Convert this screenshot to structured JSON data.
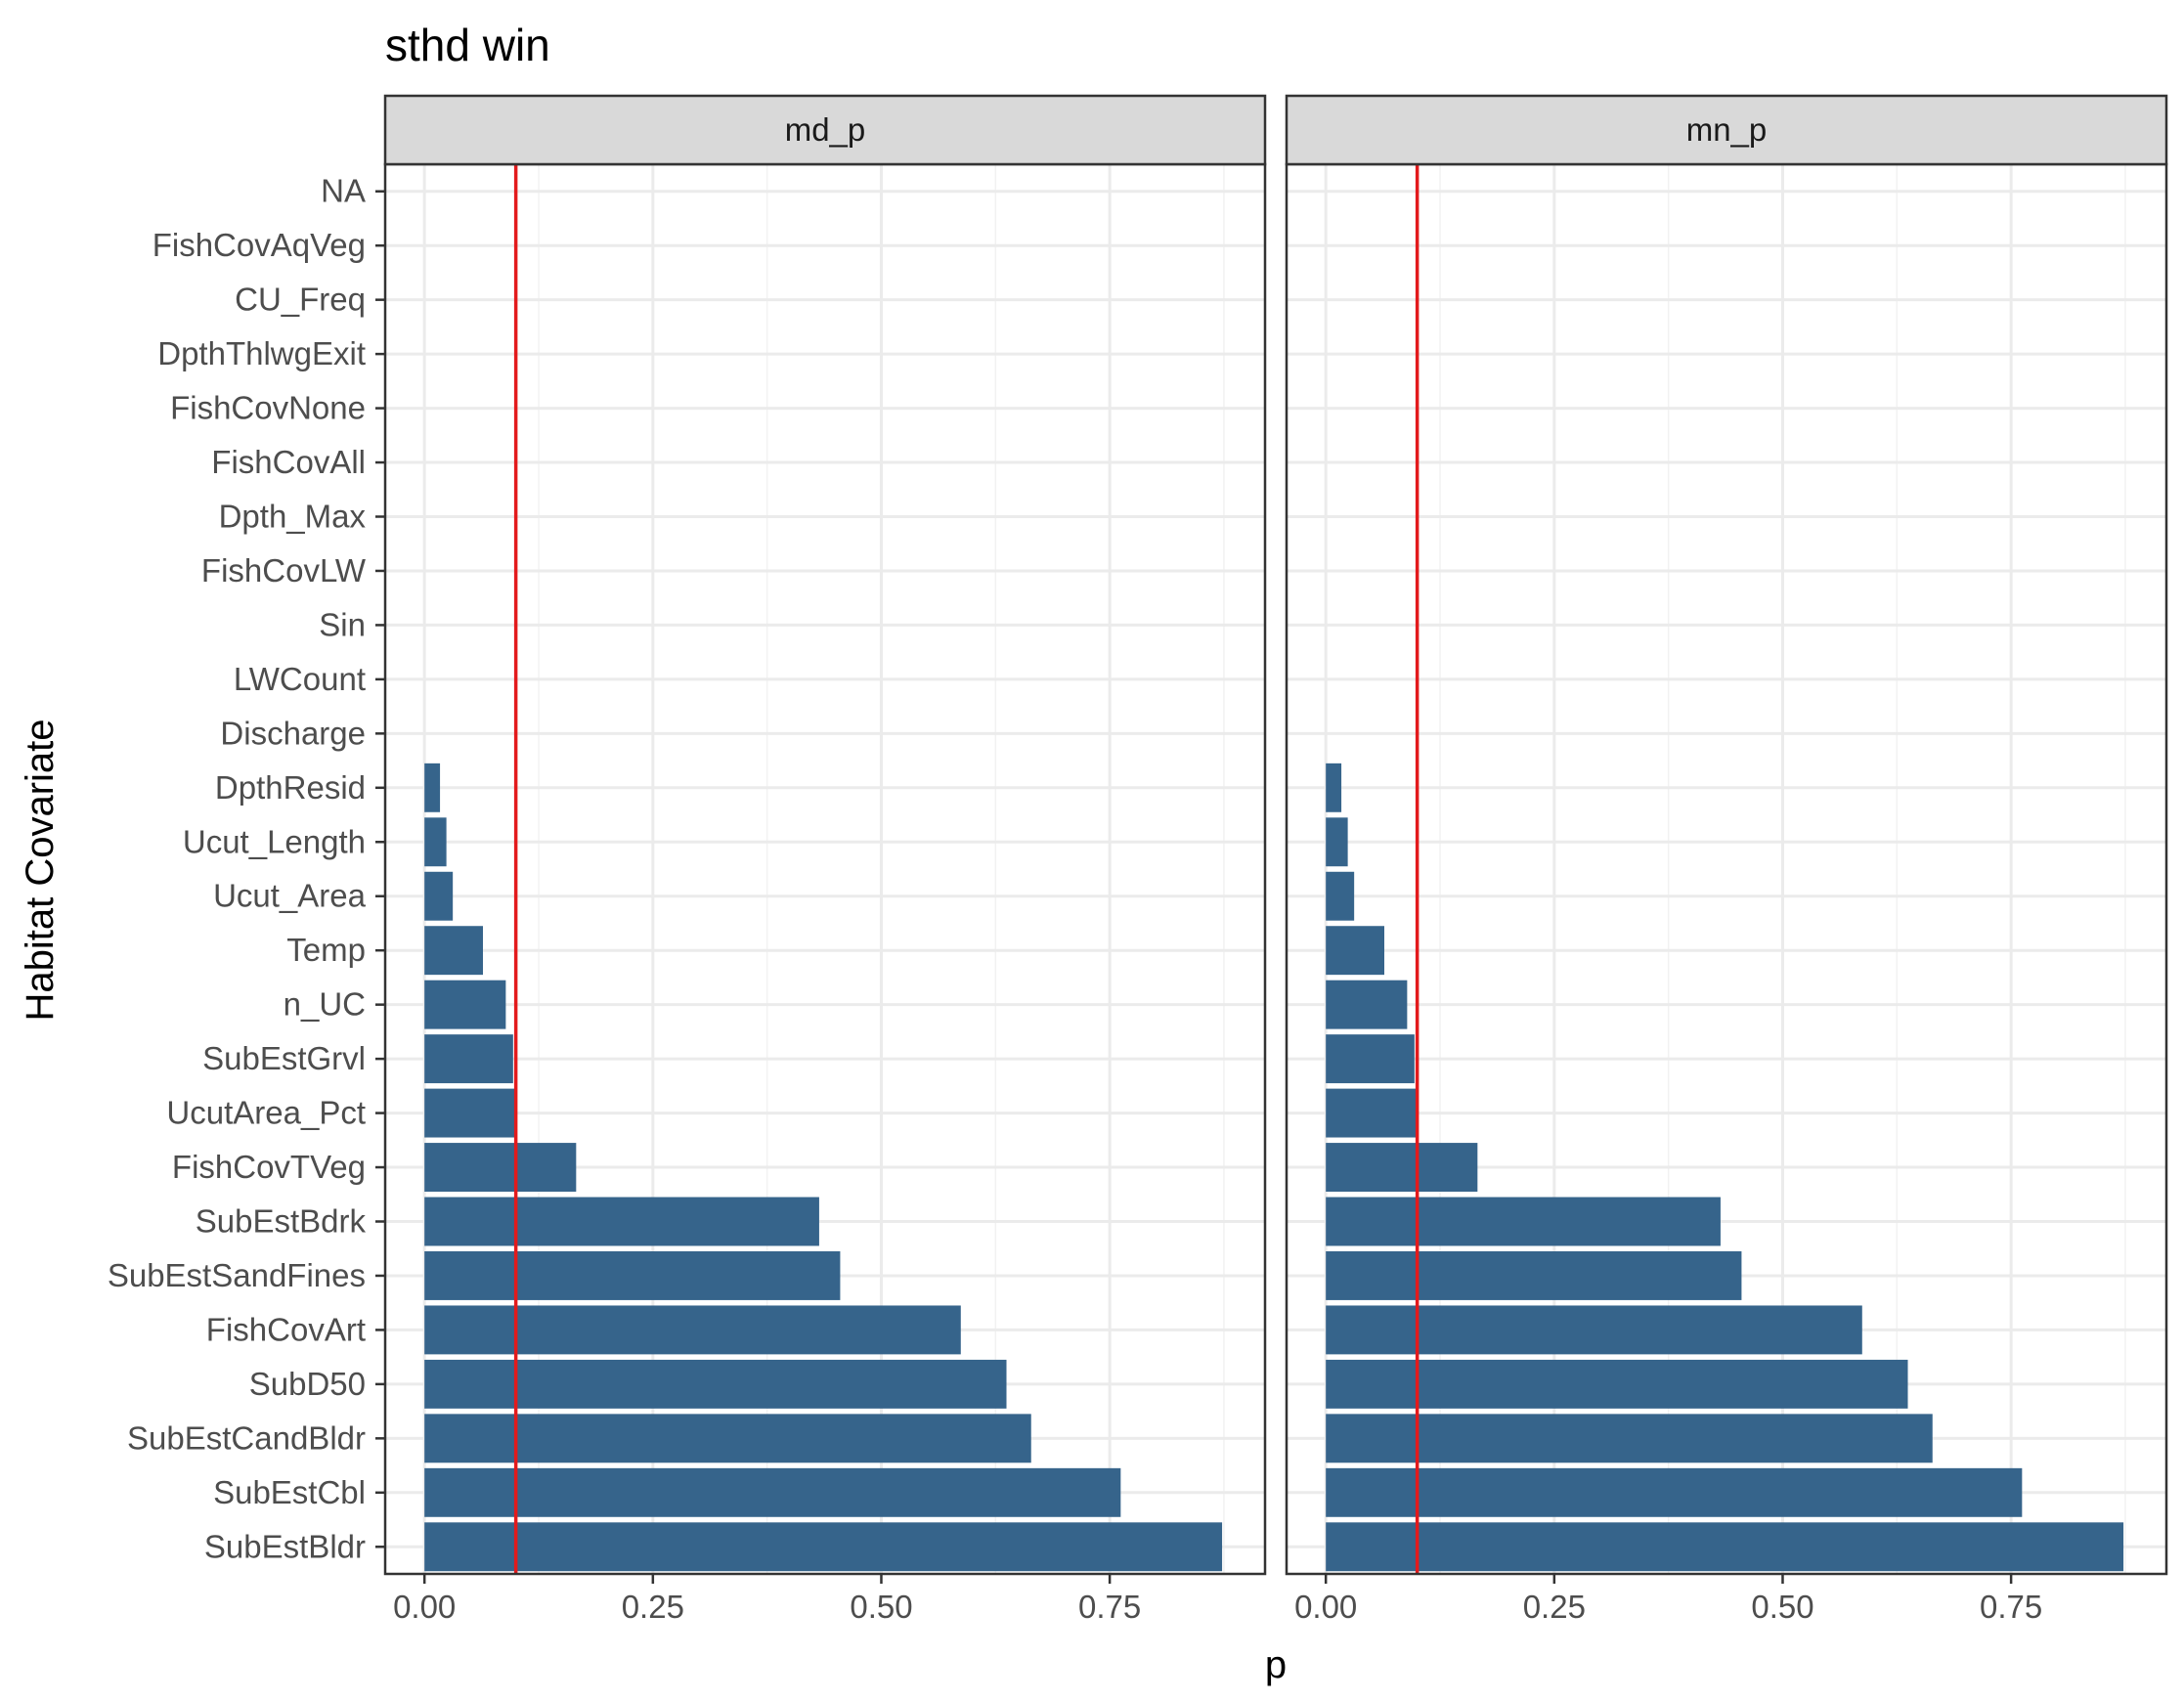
{
  "chart_data": {
    "type": "bar",
    "orientation": "horizontal",
    "title": "sthd win",
    "xlabel": "p",
    "ylabel": "Habitat Covariate",
    "xlim": [
      -0.043,
      0.92
    ],
    "xticks": [
      "0.00",
      "0.25",
      "0.50",
      "0.75"
    ],
    "xtick_values": [
      0,
      0.25,
      0.5,
      0.75
    ],
    "reference_line": {
      "x": 0.1,
      "color": "#e31a1c"
    },
    "bar_color": "#36648b",
    "grid": true,
    "categories": [
      "SubEstBldr",
      "SubEstCbl",
      "SubEstCandBldr",
      "SubD50",
      "FishCovArt",
      "SubEstSandFines",
      "SubEstBdrk",
      "FishCovTVeg",
      "UcutArea_Pct",
      "SubEstGrvl",
      "n_UC",
      "Temp",
      "Ucut_Area",
      "Ucut_Length",
      "DpthResid",
      "Discharge",
      "LWCount",
      "Sin",
      "FishCovLW",
      "Dpth_Max",
      "FishCovAll",
      "FishCovNone",
      "DpthThlwgExit",
      "CU_Freq",
      "FishCovAqVeg",
      "NA"
    ],
    "panels": [
      {
        "name": "md_p",
        "values": [
          0.873,
          0.762,
          0.664,
          0.637,
          0.587,
          0.455,
          0.432,
          0.166,
          0.101,
          0.097,
          0.089,
          0.064,
          0.031,
          0.024,
          0.017,
          null,
          null,
          null,
          null,
          null,
          null,
          null,
          null,
          null,
          null,
          null
        ]
      },
      {
        "name": "mn_p",
        "values": [
          0.873,
          0.762,
          0.664,
          0.637,
          0.587,
          0.455,
          0.432,
          0.166,
          0.101,
          0.097,
          0.089,
          0.064,
          0.031,
          0.024,
          0.017,
          null,
          null,
          null,
          null,
          null,
          null,
          null,
          null,
          null,
          null,
          null
        ]
      }
    ]
  }
}
